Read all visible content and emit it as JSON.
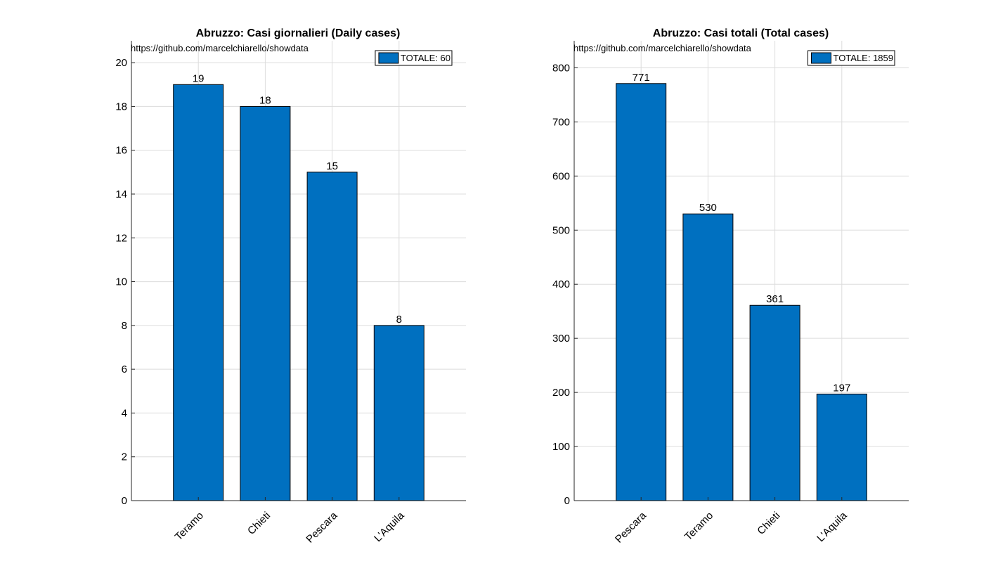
{
  "colors": {
    "bar": "#0070C0",
    "grid": "#dcdcdc",
    "axis": "#262626"
  },
  "chart_data": [
    {
      "type": "bar",
      "title": "Abruzzo: Casi giornalieri (Daily cases)",
      "annotation": "https://github.com/marcelchiarello/showdata",
      "legend": "TOTALE: 60",
      "legend_position": "top-right",
      "categories": [
        "Teramo",
        "Chieti",
        "Pescara",
        "L'Aquila"
      ],
      "values": [
        19,
        18,
        15,
        8
      ],
      "ylim": [
        0,
        21
      ],
      "yticks": [
        0,
        2,
        4,
        6,
        8,
        10,
        12,
        14,
        16,
        18,
        20
      ],
      "grid": true
    },
    {
      "type": "bar",
      "title": "Abruzzo: Casi totali (Total cases)",
      "annotation": "https://github.com/marcelchiarello/showdata",
      "legend": "TOTALE: 1859",
      "legend_position": "top-right",
      "categories": [
        "Pescara",
        "Teramo",
        "Chieti",
        "L'Aquila"
      ],
      "values": [
        771,
        530,
        361,
        197
      ],
      "ylim": [
        0,
        850
      ],
      "yticks": [
        0,
        100,
        200,
        300,
        400,
        500,
        600,
        700,
        800
      ],
      "grid": true
    }
  ]
}
